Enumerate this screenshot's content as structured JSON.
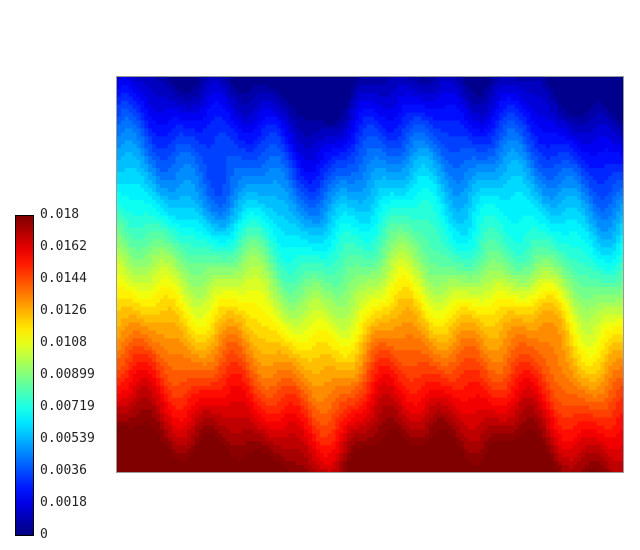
{
  "chart_data": {
    "type": "heatmap",
    "colormap": "jet",
    "title": "",
    "xlabel": "",
    "ylabel": "",
    "colorbar": {
      "min": 0,
      "max": 0.018,
      "placement": "left",
      "tick_labels": [
        "0.018",
        "0.0162",
        "0.0144",
        "0.0126",
        "0.0108",
        "0.00899",
        "0.00719",
        "0.00539",
        "0.0036",
        "0.0018",
        "0"
      ]
    },
    "field_description_values": {
      "top_value": 0.0,
      "bottom_value": 0.018
    },
    "colors": {
      "axis_border": "#9a9a9a",
      "background": "#ffffff"
    }
  }
}
